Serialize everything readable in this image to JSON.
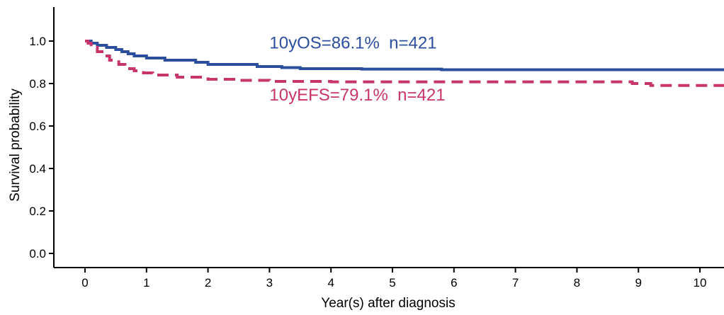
{
  "chart_data": {
    "type": "line",
    "xlabel": "Year(s) after diagnosis",
    "ylabel": "Survival probability",
    "xlim": [
      0,
      10.4
    ],
    "ylim": [
      0,
      1.05
    ],
    "x_ticks": [
      "0",
      "1",
      "2",
      "3",
      "4",
      "5",
      "6",
      "7",
      "8",
      "9",
      "10"
    ],
    "y_ticks": [
      "0.0",
      "0.2",
      "0.4",
      "0.6",
      "0.8",
      "1.0"
    ],
    "grid": false,
    "series": [
      {
        "name": "10yOS",
        "color": "#2b4f9c",
        "style": "solid",
        "step_points": [
          [
            0,
            1.0
          ],
          [
            0.1,
            0.99
          ],
          [
            0.2,
            0.98
          ],
          [
            0.35,
            0.97
          ],
          [
            0.5,
            0.96
          ],
          [
            0.6,
            0.95
          ],
          [
            0.7,
            0.94
          ],
          [
            0.8,
            0.93
          ],
          [
            1.0,
            0.92
          ],
          [
            1.3,
            0.91
          ],
          [
            1.8,
            0.9
          ],
          [
            2.0,
            0.89
          ],
          [
            2.8,
            0.88
          ],
          [
            3.2,
            0.875
          ],
          [
            3.5,
            0.87
          ],
          [
            4.5,
            0.868
          ],
          [
            5.8,
            0.865
          ],
          [
            10.4,
            0.861
          ]
        ]
      },
      {
        "name": "10yEFS",
        "color": "#c8356b",
        "style": "dashed",
        "step_points": [
          [
            0,
            1.0
          ],
          [
            0.05,
            0.99
          ],
          [
            0.1,
            0.97
          ],
          [
            0.2,
            0.95
          ],
          [
            0.3,
            0.93
          ],
          [
            0.4,
            0.91
          ],
          [
            0.55,
            0.89
          ],
          [
            0.65,
            0.87
          ],
          [
            0.8,
            0.86
          ],
          [
            0.95,
            0.85
          ],
          [
            1.1,
            0.84
          ],
          [
            1.5,
            0.83
          ],
          [
            2.0,
            0.82
          ],
          [
            2.5,
            0.815
          ],
          [
            3.0,
            0.81
          ],
          [
            4.0,
            0.808
          ],
          [
            8.9,
            0.8
          ],
          [
            9.2,
            0.791
          ],
          [
            10.4,
            0.791
          ]
        ]
      }
    ],
    "annotations": [
      {
        "text": "10yOS=86.1%  n=421",
        "x": 3.0,
        "y": 0.965,
        "color": "#2b4f9c"
      },
      {
        "text": "10yEFS=79.1%  n=421",
        "x": 3.0,
        "y": 0.72,
        "color": "#c8356b"
      }
    ]
  }
}
